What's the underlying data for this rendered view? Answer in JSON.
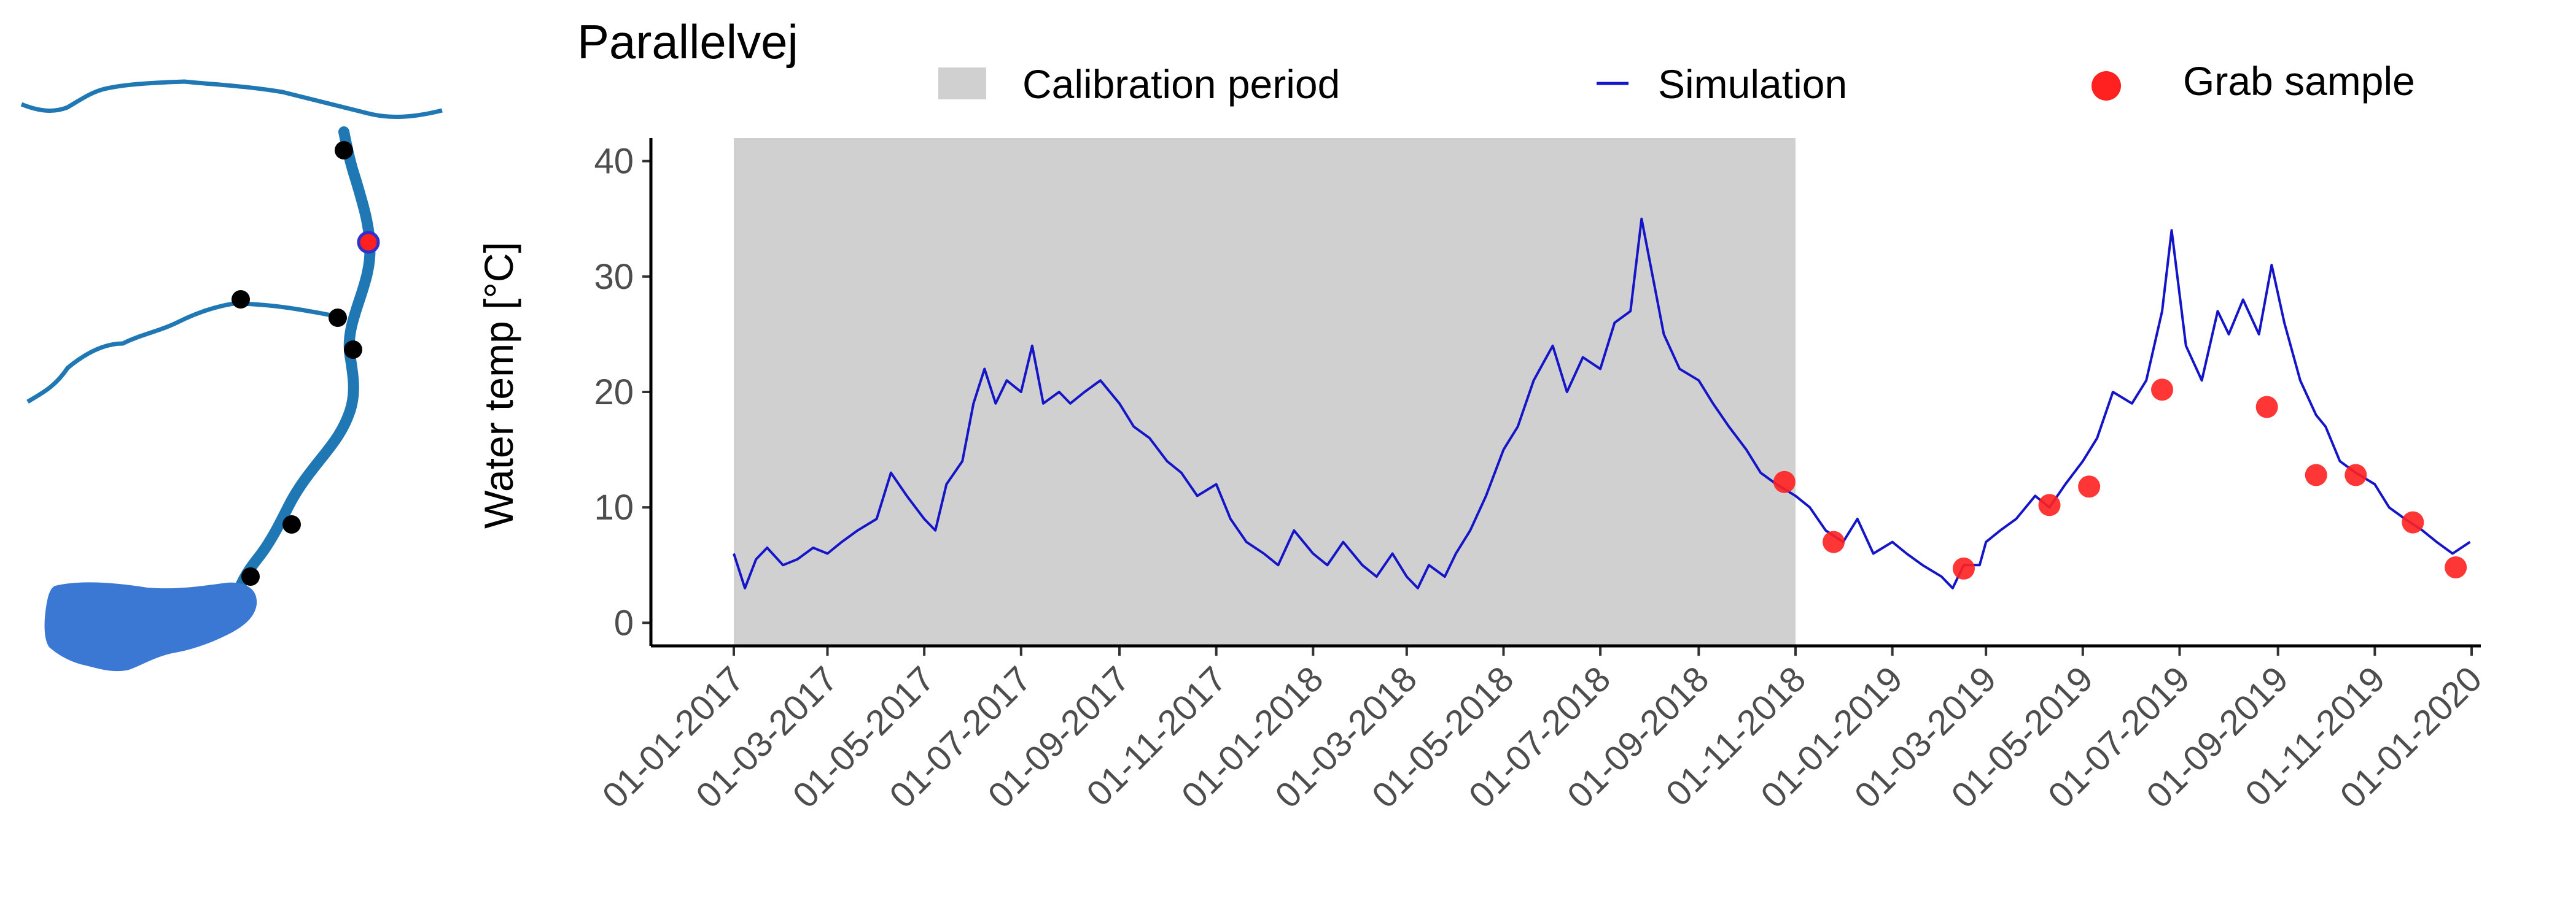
{
  "map": {
    "river_color": "#1f77b4",
    "lake_color": "#3a78d4",
    "station_color": "#000000",
    "selected_station_fill": "#ff2020",
    "selected_station_ring": "#3030cc"
  },
  "chart_data": {
    "type": "line",
    "title": "Parallelvej",
    "xlabel": "",
    "ylabel": "Water temp [°C]",
    "ylim": [
      -2,
      42
    ],
    "yticks": [
      0,
      10,
      20,
      30,
      40
    ],
    "x_range": [
      "2017-01-01",
      "2020-01-01"
    ],
    "x_tick_dates": [
      "2017-01-01",
      "2017-03-01",
      "2017-05-01",
      "2017-07-01",
      "2017-09-01",
      "2017-11-01",
      "2018-01-01",
      "2018-03-01",
      "2018-05-01",
      "2018-07-01",
      "2018-09-01",
      "2018-11-01",
      "2019-01-01",
      "2019-03-01",
      "2019-05-01",
      "2019-07-01",
      "2019-09-01",
      "2019-11-01",
      "2020-01-01"
    ],
    "x_tick_labels": [
      "01-01-2017",
      "01-03-2017",
      "01-05-2017",
      "01-07-2017",
      "01-09-2017",
      "01-11-2017",
      "01-01-2018",
      "01-03-2018",
      "01-05-2018",
      "01-07-2018",
      "01-09-2018",
      "01-11-2018",
      "01-01-2019",
      "01-03-2019",
      "01-05-2019",
      "01-07-2019",
      "01-09-2019",
      "01-11-2019",
      "01-01-2020"
    ],
    "calibration_period": {
      "label": "Calibration period",
      "start": "2017-01-01",
      "end": "2018-11-01",
      "color": "#d0d0d0"
    },
    "legend": {
      "placement": "top",
      "items": [
        {
          "name": "Calibration period",
          "kind": "patch",
          "color": "#d0d0d0"
        },
        {
          "name": "Simulation",
          "kind": "line",
          "color": "#1414c8"
        },
        {
          "name": "Grab sample",
          "kind": "point",
          "color": "#ff2020"
        }
      ]
    },
    "series": [
      {
        "name": "Simulation",
        "color": "#1414c8",
        "points": [
          [
            "2017-01-01",
            6
          ],
          [
            "2017-01-08",
            3
          ],
          [
            "2017-01-15",
            5.5
          ],
          [
            "2017-01-22",
            6.5
          ],
          [
            "2017-02-01",
            5
          ],
          [
            "2017-02-10",
            5.5
          ],
          [
            "2017-02-20",
            6.5
          ],
          [
            "2017-03-01",
            6
          ],
          [
            "2017-03-10",
            7
          ],
          [
            "2017-03-20",
            8
          ],
          [
            "2017-04-01",
            9
          ],
          [
            "2017-04-10",
            13
          ],
          [
            "2017-04-20",
            11
          ],
          [
            "2017-05-01",
            9
          ],
          [
            "2017-05-08",
            8
          ],
          [
            "2017-05-15",
            12
          ],
          [
            "2017-05-25",
            14
          ],
          [
            "2017-06-01",
            19
          ],
          [
            "2017-06-08",
            22
          ],
          [
            "2017-06-15",
            19
          ],
          [
            "2017-06-22",
            21
          ],
          [
            "2017-07-01",
            20
          ],
          [
            "2017-07-08",
            24
          ],
          [
            "2017-07-15",
            19
          ],
          [
            "2017-07-25",
            20
          ],
          [
            "2017-08-01",
            19
          ],
          [
            "2017-08-10",
            20
          ],
          [
            "2017-08-20",
            21
          ],
          [
            "2017-09-01",
            19
          ],
          [
            "2017-09-10",
            17
          ],
          [
            "2017-09-20",
            16
          ],
          [
            "2017-10-01",
            14
          ],
          [
            "2017-10-10",
            13
          ],
          [
            "2017-10-20",
            11
          ],
          [
            "2017-11-01",
            12
          ],
          [
            "2017-11-10",
            9
          ],
          [
            "2017-11-20",
            7
          ],
          [
            "2017-12-01",
            6
          ],
          [
            "2017-12-10",
            5
          ],
          [
            "2017-12-20",
            8
          ],
          [
            "2018-01-01",
            6
          ],
          [
            "2018-01-10",
            5
          ],
          [
            "2018-01-20",
            7
          ],
          [
            "2018-02-01",
            5
          ],
          [
            "2018-02-10",
            4
          ],
          [
            "2018-02-20",
            6
          ],
          [
            "2018-03-01",
            4
          ],
          [
            "2018-03-08",
            3
          ],
          [
            "2018-03-15",
            5
          ],
          [
            "2018-03-25",
            4
          ],
          [
            "2018-04-01",
            6
          ],
          [
            "2018-04-10",
            8
          ],
          [
            "2018-04-20",
            11
          ],
          [
            "2018-05-01",
            15
          ],
          [
            "2018-05-10",
            17
          ],
          [
            "2018-05-20",
            21
          ],
          [
            "2018-06-01",
            24
          ],
          [
            "2018-06-10",
            20
          ],
          [
            "2018-06-20",
            23
          ],
          [
            "2018-07-01",
            22
          ],
          [
            "2018-07-10",
            26
          ],
          [
            "2018-07-20",
            27
          ],
          [
            "2018-07-27",
            35
          ],
          [
            "2018-08-03",
            30
          ],
          [
            "2018-08-10",
            25
          ],
          [
            "2018-08-20",
            22
          ],
          [
            "2018-09-01",
            21
          ],
          [
            "2018-09-10",
            19
          ],
          [
            "2018-09-20",
            17
          ],
          [
            "2018-10-01",
            15
          ],
          [
            "2018-10-10",
            13
          ],
          [
            "2018-10-20",
            12
          ],
          [
            "2018-11-01",
            11
          ],
          [
            "2018-11-10",
            10
          ],
          [
            "2018-11-20",
            8
          ],
          [
            "2018-12-01",
            7
          ],
          [
            "2018-12-10",
            9
          ],
          [
            "2018-12-20",
            6
          ],
          [
            "2019-01-01",
            7
          ],
          [
            "2019-01-10",
            6
          ],
          [
            "2019-01-20",
            5
          ],
          [
            "2019-02-01",
            4
          ],
          [
            "2019-02-08",
            3
          ],
          [
            "2019-02-15",
            5
          ],
          [
            "2019-02-25",
            5
          ],
          [
            "2019-03-01",
            7
          ],
          [
            "2019-03-10",
            8
          ],
          [
            "2019-03-20",
            9
          ],
          [
            "2019-04-01",
            11
          ],
          [
            "2019-04-10",
            10
          ],
          [
            "2019-04-20",
            12
          ],
          [
            "2019-05-01",
            14
          ],
          [
            "2019-05-10",
            16
          ],
          [
            "2019-05-20",
            20
          ],
          [
            "2019-06-01",
            19
          ],
          [
            "2019-06-10",
            21
          ],
          [
            "2019-06-20",
            27
          ],
          [
            "2019-06-26",
            34
          ],
          [
            "2019-07-05",
            24
          ],
          [
            "2019-07-15",
            21
          ],
          [
            "2019-07-25",
            27
          ],
          [
            "2019-08-01",
            25
          ],
          [
            "2019-08-10",
            28
          ],
          [
            "2019-08-20",
            25
          ],
          [
            "2019-08-28",
            31
          ],
          [
            "2019-09-05",
            26
          ],
          [
            "2019-09-15",
            21
          ],
          [
            "2019-09-25",
            18
          ],
          [
            "2019-10-01",
            17
          ],
          [
            "2019-10-10",
            14
          ],
          [
            "2019-10-20",
            13
          ],
          [
            "2019-11-01",
            12
          ],
          [
            "2019-11-10",
            10
          ],
          [
            "2019-11-20",
            9
          ],
          [
            "2019-12-01",
            8
          ],
          [
            "2019-12-10",
            7
          ],
          [
            "2019-12-20",
            6
          ],
          [
            "2019-12-31",
            7
          ]
        ]
      },
      {
        "name": "Grab sample",
        "color": "#ff2020",
        "points": [
          [
            "2018-10-25",
            12.2
          ],
          [
            "2018-11-25",
            7.0
          ],
          [
            "2019-02-15",
            4.7
          ],
          [
            "2019-04-10",
            10.2
          ],
          [
            "2019-05-05",
            11.8
          ],
          [
            "2019-06-20",
            20.2
          ],
          [
            "2019-08-25",
            18.7
          ],
          [
            "2019-09-25",
            12.8
          ],
          [
            "2019-10-20",
            12.8
          ],
          [
            "2019-11-25",
            8.7
          ],
          [
            "2019-12-22",
            4.8
          ]
        ]
      }
    ]
  }
}
